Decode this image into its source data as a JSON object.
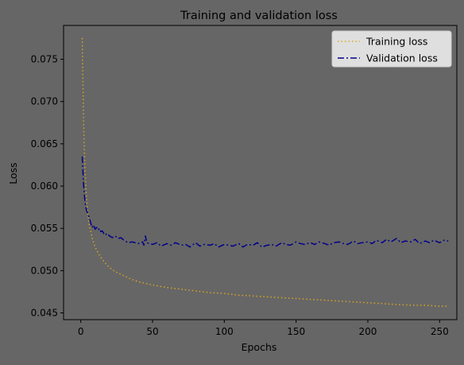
{
  "chart_data": {
    "type": "line",
    "title": "Training and validation loss",
    "xlabel": "Epochs",
    "ylabel": "Loss",
    "xlim": [
      -12,
      262
    ],
    "ylim": [
      0.0442,
      0.079
    ],
    "x_ticks": [
      0,
      50,
      100,
      150,
      200,
      250
    ],
    "y_ticks": [
      0.045,
      0.05,
      0.055,
      0.06,
      0.065,
      0.07,
      0.075
    ],
    "y_tick_labels": [
      "0.045",
      "0.050",
      "0.055",
      "0.060",
      "0.065",
      "0.070",
      "0.075"
    ],
    "grid": false,
    "legend_position": "top-right",
    "background_color": "#666666",
    "series": [
      {
        "name": "Training loss",
        "color": "#DAA520",
        "style": "dotted",
        "x": [
          1,
          2,
          3,
          4,
          5,
          6,
          8,
          10,
          12,
          15,
          18,
          22,
          26,
          30,
          35,
          40,
          45,
          50,
          60,
          70,
          80,
          90,
          100,
          110,
          120,
          130,
          140,
          150,
          160,
          170,
          180,
          190,
          200,
          210,
          220,
          230,
          240,
          250,
          256
        ],
        "values": [
          0.0775,
          0.067,
          0.0615,
          0.0585,
          0.0565,
          0.0553,
          0.0538,
          0.0528,
          0.0521,
          0.0513,
          0.0507,
          0.0501,
          0.0497,
          0.0494,
          0.049,
          0.0487,
          0.0485,
          0.0483,
          0.048,
          0.0478,
          0.0476,
          0.0474,
          0.0473,
          0.0471,
          0.047,
          0.0469,
          0.0468,
          0.0467,
          0.0466,
          0.0465,
          0.0464,
          0.0463,
          0.0462,
          0.0461,
          0.046,
          0.0459,
          0.0459,
          0.0458,
          0.0458
        ]
      },
      {
        "name": "Validation loss",
        "color": "#00008B",
        "style": "dashdot",
        "x": [
          1,
          2,
          3,
          4,
          5,
          6,
          7,
          8,
          9,
          10,
          11,
          12,
          13,
          14,
          15,
          16,
          17,
          18,
          19,
          20,
          22,
          24,
          26,
          28,
          30,
          33,
          36,
          40,
          43,
          44,
          45,
          46,
          48,
          50,
          53,
          56,
          60,
          63,
          66,
          70,
          73,
          76,
          80,
          83,
          86,
          90,
          93,
          96,
          100,
          103,
          106,
          110,
          113,
          116,
          120,
          123,
          126,
          130,
          133,
          136,
          140,
          143,
          146,
          150,
          153,
          156,
          160,
          163,
          166,
          170,
          173,
          176,
          180,
          183,
          186,
          190,
          193,
          196,
          200,
          203,
          206,
          210,
          213,
          216,
          220,
          223,
          226,
          230,
          233,
          236,
          240,
          243,
          246,
          250,
          253,
          256
        ],
        "values": [
          0.0635,
          0.06,
          0.058,
          0.0571,
          0.0567,
          0.0562,
          0.0556,
          0.0551,
          0.0554,
          0.0549,
          0.0551,
          0.0548,
          0.055,
          0.0546,
          0.0547,
          0.0544,
          0.0545,
          0.0542,
          0.0543,
          0.0541,
          0.0539,
          0.0541,
          0.0538,
          0.0539,
          0.0536,
          0.0533,
          0.0534,
          0.0532,
          0.0534,
          0.053,
          0.0541,
          0.0533,
          0.0532,
          0.0531,
          0.0533,
          0.0529,
          0.0532,
          0.053,
          0.0533,
          0.053,
          0.0531,
          0.0528,
          0.0533,
          0.0529,
          0.0531,
          0.053,
          0.0532,
          0.0528,
          0.0531,
          0.053,
          0.0529,
          0.0532,
          0.0528,
          0.0531,
          0.053,
          0.0533,
          0.0528,
          0.053,
          0.0531,
          0.0529,
          0.0533,
          0.0531,
          0.053,
          0.0534,
          0.0532,
          0.0531,
          0.0533,
          0.0531,
          0.0534,
          0.0532,
          0.053,
          0.0533,
          0.0534,
          0.0532,
          0.0531,
          0.0535,
          0.0532,
          0.0533,
          0.0534,
          0.0532,
          0.0536,
          0.0533,
          0.0537,
          0.0534,
          0.0538,
          0.0533,
          0.0535,
          0.0534,
          0.0537,
          0.0532,
          0.0535,
          0.0533,
          0.0536,
          0.0533,
          0.0536,
          0.0535
        ]
      }
    ]
  }
}
